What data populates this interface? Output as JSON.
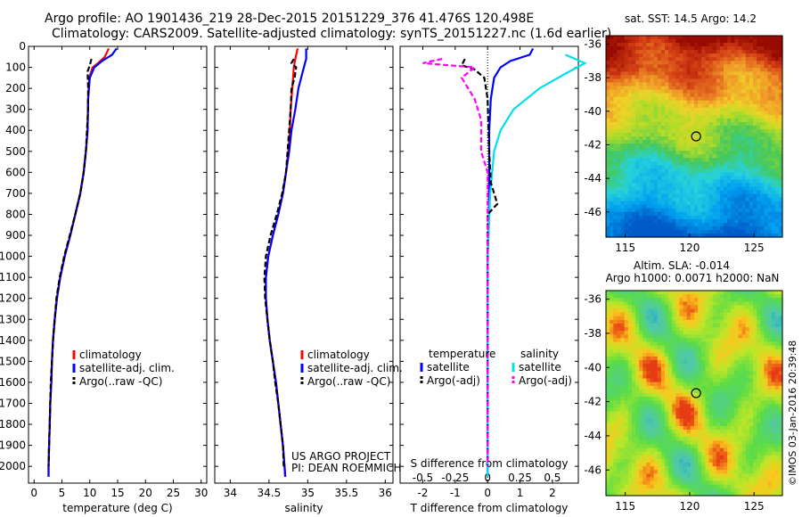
{
  "header": {
    "line1": "Argo profile: AO 1901436_219 28-Dec-2015 20151229_376 41.476S 120.498E",
    "line2": "Climatology: CARS2009. Satellite-adjusted climatology: synTS_20151227.nc (1.6d earlier)"
  },
  "sidebar_stamp": "©IMOS 03-Jan-2016 20:39:48",
  "colors": {
    "climatology": "#ff0000",
    "satellite": "#0000ff",
    "argo": "#000000",
    "salinity_satellite": "#00e0e8",
    "salinity_argo": "#ff00ff"
  },
  "chart_data": [
    {
      "id": "temperature",
      "type": "line",
      "xlabel": "temperature (deg C)",
      "ylabel": "",
      "xlim": [
        -1,
        31
      ],
      "ylim": [
        2080,
        0
      ],
      "xticks": [
        0,
        5,
        10,
        15,
        20,
        25,
        30
      ],
      "yticks": [
        0,
        100,
        200,
        300,
        400,
        500,
        600,
        700,
        800,
        900,
        1000,
        1100,
        1200,
        1300,
        1400,
        1500,
        1600,
        1700,
        1800,
        1900,
        2000
      ],
      "series": [
        {
          "name": "climatology",
          "color": "#ff0000",
          "style": "solid",
          "points": [
            [
              13.4,
              10
            ],
            [
              12.7,
              50
            ],
            [
              11.5,
              80
            ],
            [
              10.5,
              100
            ],
            [
              9.9,
              150
            ],
            [
              9.7,
              250
            ],
            [
              9.6,
              400
            ],
            [
              9.3,
              500
            ],
            [
              8.9,
              600
            ],
            [
              8.3,
              700
            ],
            [
              7.4,
              800
            ],
            [
              6.5,
              900
            ],
            [
              5.5,
              1000
            ],
            [
              4.7,
              1100
            ],
            [
              4.1,
              1200
            ],
            [
              3.7,
              1300
            ],
            [
              3.4,
              1400
            ],
            [
              3.2,
              1500
            ],
            [
              3.1,
              1600
            ],
            [
              2.9,
              1700
            ],
            [
              2.8,
              1800
            ],
            [
              2.7,
              1900
            ],
            [
              2.6,
              2000
            ],
            [
              2.6,
              2050
            ]
          ]
        },
        {
          "name": "satellite-adj. clim.",
          "color": "#0000ff",
          "style": "solid",
          "points": [
            [
              14.8,
              10
            ],
            [
              14.0,
              40
            ],
            [
              12.2,
              70
            ],
            [
              10.8,
              100
            ],
            [
              10.0,
              150
            ],
            [
              9.7,
              250
            ],
            [
              9.6,
              400
            ],
            [
              9.3,
              500
            ],
            [
              8.9,
              600
            ],
            [
              8.3,
              700
            ],
            [
              7.4,
              800
            ],
            [
              6.5,
              900
            ],
            [
              5.5,
              1000
            ],
            [
              4.7,
              1100
            ],
            [
              4.1,
              1200
            ],
            [
              3.7,
              1300
            ],
            [
              3.4,
              1400
            ],
            [
              3.2,
              1500
            ],
            [
              3.1,
              1600
            ],
            [
              2.9,
              1700
            ],
            [
              2.8,
              1800
            ],
            [
              2.7,
              1900
            ],
            [
              2.6,
              2000
            ],
            [
              2.6,
              2050
            ]
          ]
        },
        {
          "name": "Argo(..raw -QC)",
          "color": "#000000",
          "style": "dashed",
          "points": [
            [
              10.3,
              60
            ],
            [
              10.0,
              90
            ],
            [
              9.6,
              120
            ],
            [
              9.7,
              200
            ],
            [
              9.7,
              300
            ],
            [
              9.5,
              400
            ],
            [
              9.3,
              500
            ],
            [
              8.9,
              600
            ],
            [
              8.3,
              700
            ],
            [
              7.4,
              800
            ],
            [
              6.4,
              900
            ],
            [
              5.4,
              1000
            ],
            [
              4.6,
              1100
            ],
            [
              4.0,
              1200
            ],
            [
              3.7,
              1300
            ],
            [
              3.4,
              1400
            ],
            [
              3.2,
              1500
            ],
            [
              3.0,
              1600
            ],
            [
              2.9,
              1700
            ],
            [
              2.8,
              1800
            ],
            [
              2.7,
              1900
            ],
            [
              2.6,
              2000
            ]
          ]
        }
      ],
      "legend": [
        "climatology",
        "satellite-adj. clim.",
        "Argo(..raw -QC)"
      ]
    },
    {
      "id": "salinity",
      "type": "line",
      "xlabel": "salinity",
      "ylabel": "",
      "xlim": [
        33.8,
        36.1
      ],
      "ylim": [
        2080,
        0
      ],
      "xticks": [
        34,
        34.5,
        35,
        35.5,
        36
      ],
      "series": [
        {
          "name": "climatology",
          "color": "#ff0000",
          "style": "solid",
          "points": [
            [
              34.87,
              10
            ],
            [
              34.84,
              60
            ],
            [
              34.82,
              100
            ],
            [
              34.8,
              200
            ],
            [
              34.78,
              300
            ],
            [
              34.77,
              400
            ],
            [
              34.75,
              500
            ],
            [
              34.72,
              600
            ],
            [
              34.68,
              700
            ],
            [
              34.62,
              800
            ],
            [
              34.55,
              900
            ],
            [
              34.49,
              1000
            ],
            [
              34.46,
              1100
            ],
            [
              34.46,
              1200
            ],
            [
              34.48,
              1300
            ],
            [
              34.51,
              1400
            ],
            [
              34.55,
              1500
            ],
            [
              34.59,
              1600
            ],
            [
              34.62,
              1700
            ],
            [
              34.65,
              1800
            ],
            [
              34.68,
              1900
            ],
            [
              34.7,
              2000
            ],
            [
              34.71,
              2050
            ]
          ]
        },
        {
          "name": "satellite-adj. clim.",
          "color": "#0000ff",
          "style": "solid",
          "points": [
            [
              34.98,
              10
            ],
            [
              34.98,
              60
            ],
            [
              34.95,
              100
            ],
            [
              34.88,
              200
            ],
            [
              34.84,
              300
            ],
            [
              34.79,
              400
            ],
            [
              34.76,
              500
            ],
            [
              34.72,
              600
            ],
            [
              34.68,
              700
            ],
            [
              34.62,
              800
            ],
            [
              34.55,
              900
            ],
            [
              34.49,
              1000
            ],
            [
              34.46,
              1100
            ],
            [
              34.46,
              1200
            ],
            [
              34.48,
              1300
            ],
            [
              34.51,
              1400
            ],
            [
              34.55,
              1500
            ],
            [
              34.59,
              1600
            ],
            [
              34.62,
              1700
            ],
            [
              34.65,
              1800
            ],
            [
              34.68,
              1900
            ],
            [
              34.7,
              2000
            ],
            [
              34.71,
              2050
            ]
          ]
        },
        {
          "name": "Argo(..raw -QC)",
          "color": "#000000",
          "style": "dashed",
          "points": [
            [
              34.82,
              60
            ],
            [
              34.79,
              80
            ],
            [
              34.85,
              100
            ],
            [
              34.83,
              150
            ],
            [
              34.79,
              200
            ],
            [
              34.78,
              300
            ],
            [
              34.76,
              400
            ],
            [
              34.74,
              500
            ],
            [
              34.72,
              600
            ],
            [
              34.67,
              700
            ],
            [
              34.6,
              800
            ],
            [
              34.52,
              900
            ],
            [
              34.46,
              1000
            ],
            [
              34.44,
              1100
            ],
            [
              34.45,
              1200
            ],
            [
              34.48,
              1300
            ],
            [
              34.51,
              1400
            ],
            [
              34.55,
              1500
            ],
            [
              34.58,
              1600
            ],
            [
              34.62,
              1700
            ],
            [
              34.65,
              1800
            ],
            [
              34.68,
              1900
            ],
            [
              34.69,
              2000
            ]
          ]
        }
      ],
      "legend": [
        "climatology",
        "satellite-adj. clim.",
        "Argo(..raw -QC)"
      ],
      "annotation": [
        "US ARGO PROJECT",
        "PI: DEAN ROEMMICH"
      ]
    },
    {
      "id": "difference",
      "type": "line",
      "xlabel": "T difference from climatology",
      "xlabel_top": "S difference from climatology",
      "xlim": [
        -2.7,
        2.8
      ],
      "ylim": [
        2080,
        0
      ],
      "xticks": [
        -2,
        -1,
        0,
        1,
        2
      ],
      "xticks_top": [
        -0.5,
        -0.25,
        0,
        0.25,
        0.5
      ],
      "series": [
        {
          "name": "temperature satellite",
          "color": "#0000ff",
          "style": "solid",
          "points": [
            [
              1.4,
              10
            ],
            [
              1.3,
              40
            ],
            [
              0.7,
              70
            ],
            [
              0.4,
              100
            ],
            [
              0.2,
              150
            ],
            [
              0.1,
              250
            ],
            [
              0.05,
              400
            ],
            [
              0.05,
              600
            ],
            [
              0.05,
              800
            ],
            [
              0.0,
              1000
            ],
            [
              0.0,
              1500
            ],
            [
              0.0,
              2050
            ]
          ]
        },
        {
          "name": "salinity satellite",
          "color": "#00e0e8",
          "style": "solid",
          "points": [
            [
              0.6,
              40
            ],
            [
              0.75,
              80
            ],
            [
              0.6,
              130
            ],
            [
              0.4,
              200
            ],
            [
              0.2,
              300
            ],
            [
              0.1,
              400
            ],
            [
              0.05,
              500
            ],
            [
              0.02,
              700
            ],
            [
              0.0,
              1000
            ],
            [
              0.0,
              2050
            ]
          ]
        },
        {
          "name": "temperature Argo(-adj)",
          "color": "#000000",
          "style": "dashed",
          "points": [
            [
              -0.7,
              60
            ],
            [
              -0.8,
              90
            ],
            [
              -0.4,
              110
            ],
            [
              -0.1,
              150
            ],
            [
              0.0,
              250
            ],
            [
              0.05,
              500
            ],
            [
              0.1,
              650
            ],
            [
              0.2,
              700
            ],
            [
              0.3,
              750
            ],
            [
              0.0,
              800
            ],
            [
              0.0,
              1000
            ],
            [
              0.0,
              2000
            ]
          ]
        },
        {
          "name": "salinity Argo(-adj)",
          "color": "#ff00ff",
          "style": "dashed",
          "points": [
            [
              -0.35,
              60
            ],
            [
              -0.5,
              80
            ],
            [
              -0.1,
              100
            ],
            [
              -0.2,
              150
            ],
            [
              -0.1,
              250
            ],
            [
              -0.05,
              350
            ],
            [
              -0.05,
              500
            ],
            [
              0.0,
              600
            ],
            [
              0.0,
              700
            ],
            [
              0.0,
              2000
            ]
          ]
        }
      ],
      "legend_temperature": {
        "title": "temperature",
        "items": [
          "satellite",
          "Argo(-adj)"
        ]
      },
      "legend_salinity": {
        "title": "salinity",
        "items": [
          "satellite",
          "Argo(-adj)"
        ]
      }
    },
    {
      "id": "sst_map",
      "type": "heatmap",
      "title": "sat. SST: 14.5 Argo: 14.2",
      "xlim": [
        113.5,
        127.2
      ],
      "ylim": [
        -47.5,
        -35.5
      ],
      "xticks": [
        115,
        120,
        125
      ],
      "yticks": [
        -36,
        -38,
        -40,
        -42,
        -44,
        -46
      ],
      "marker": {
        "lon": 120.5,
        "lat": -41.5
      }
    },
    {
      "id": "sla_map",
      "type": "heatmap",
      "title_line1": "Altim. SLA: -0.014",
      "title_line2": "Argo h1000: 0.0071 h2000: NaN",
      "xlim": [
        113.5,
        127.2
      ],
      "ylim": [
        -47.5,
        -35.5
      ],
      "xticks": [
        115,
        120,
        125
      ],
      "yticks": [
        -36,
        -38,
        -40,
        -42,
        -44,
        -46
      ],
      "marker": {
        "lon": 120.5,
        "lat": -41.5
      }
    }
  ]
}
